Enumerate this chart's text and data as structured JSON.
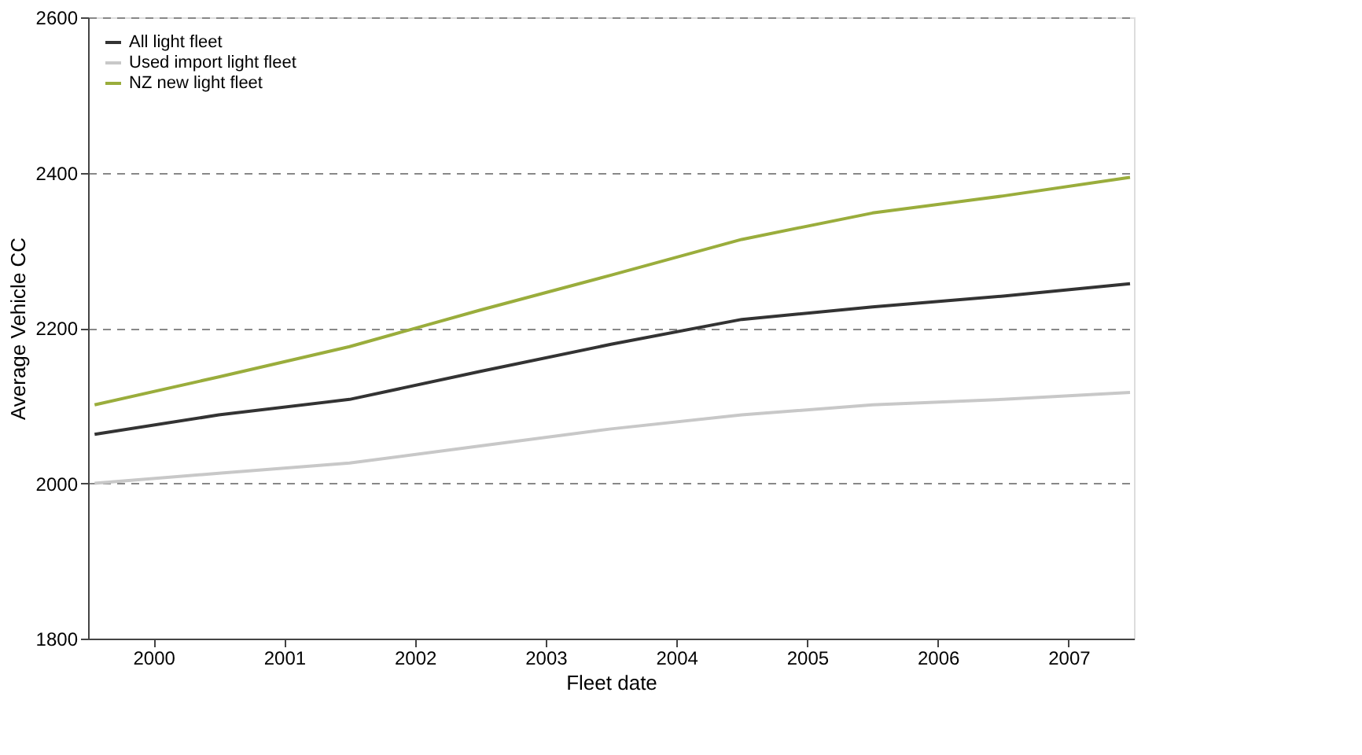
{
  "chart_data": {
    "type": "line",
    "xlabel": "Fleet date",
    "ylabel": "Average Vehicle CC",
    "x": [
      2000.05,
      2001,
      2002,
      2003,
      2004,
      2005,
      2006,
      2007,
      2007.97
    ],
    "xlim": [
      2000,
      2008
    ],
    "xticks": [
      {
        "value": 2000.5,
        "label": "2000"
      },
      {
        "value": 2001.5,
        "label": "2001"
      },
      {
        "value": 2002.5,
        "label": "2002"
      },
      {
        "value": 2003.5,
        "label": "2003"
      },
      {
        "value": 2004.5,
        "label": "2004"
      },
      {
        "value": 2005.5,
        "label": "2005"
      },
      {
        "value": 2006.5,
        "label": "2006"
      },
      {
        "value": 2007.5,
        "label": "2007"
      }
    ],
    "ylim": [
      1800,
      2600
    ],
    "yticks": [
      1800,
      2000,
      2200,
      2400,
      2600
    ],
    "grid": "y",
    "legend": "top left",
    "line_style": "solid",
    "marker": "none",
    "series": [
      {
        "name": "All light fleet",
        "color": "#333333",
        "values": [
          2063,
          2088,
          2108,
          2144,
          2179,
          2211,
          2227,
          2241,
          2257
        ]
      },
      {
        "name": "Used import light fleet",
        "color": "#c8c8c8",
        "values": [
          2000,
          2013,
          2026,
          2048,
          2070,
          2088,
          2101,
          2108,
          2117
        ]
      },
      {
        "name": "NZ new  light fleet",
        "color": "#9aad3c",
        "values": [
          2101,
          2137,
          2176,
          2223,
          2268,
          2314,
          2348,
          2370,
          2394
        ]
      }
    ]
  }
}
